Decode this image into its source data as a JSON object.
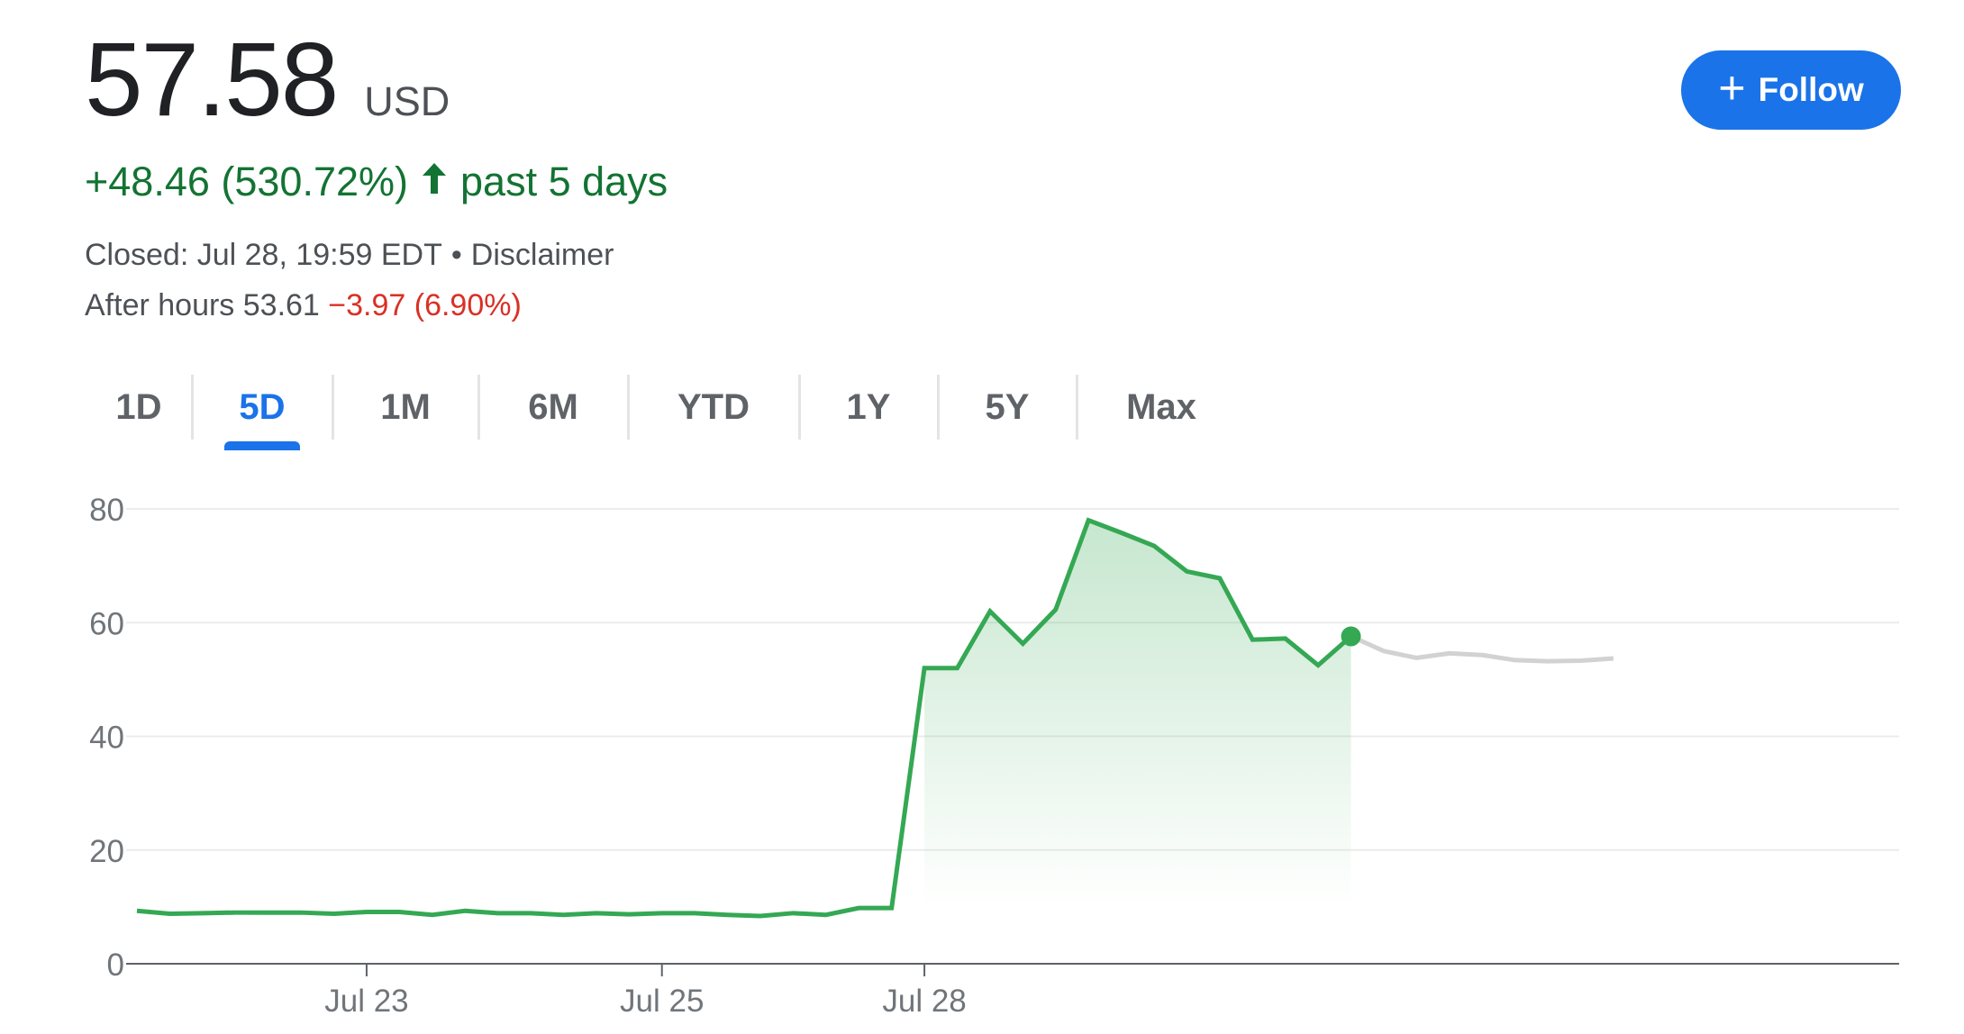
{
  "quote": {
    "price": "57.58",
    "currency": "USD",
    "change": "+48.46 (530.72%)",
    "change_arrow_icon": "arrow-up-icon",
    "change_period": "past 5 days",
    "closed_text": "Closed: Jul 28, 19:59 EDT",
    "separator": "•",
    "disclaimer": "Disclaimer",
    "after_hours_label": "After hours 53.61",
    "after_hours_change": "−3.97 (6.90%)"
  },
  "follow_button": {
    "label": "Follow",
    "icon": "plus-icon"
  },
  "tabs": [
    {
      "label": "1D",
      "active": false
    },
    {
      "label": "5D",
      "active": true
    },
    {
      "label": "1M",
      "active": false
    },
    {
      "label": "6M",
      "active": false
    },
    {
      "label": "YTD",
      "active": false
    },
    {
      "label": "1Y",
      "active": false
    },
    {
      "label": "5Y",
      "active": false
    },
    {
      "label": "Max",
      "active": false
    }
  ],
  "colors": {
    "positive": "#137333",
    "negative": "#d93025",
    "accent": "#1a73e8",
    "line": "#34a853",
    "after_hours_line": "#d2d2d2",
    "grid": "#ececec"
  },
  "chart_data": {
    "type": "line",
    "title": "",
    "xlabel": "",
    "ylabel": "",
    "ylim": [
      0,
      80
    ],
    "yticks": [
      0,
      20,
      40,
      60,
      80
    ],
    "grid": true,
    "x_tick_labels": [
      {
        "label": "Jul 23",
        "index": 7
      },
      {
        "label": "Jul 25",
        "index": 16
      },
      {
        "label": "Jul 28",
        "index": 24
      }
    ],
    "series": [
      {
        "role": "regular_hours",
        "values": [
          9.3,
          8.8,
          8.9,
          9.0,
          9.0,
          9.0,
          8.8,
          9.1,
          9.1,
          8.6,
          9.3,
          8.9,
          8.9,
          8.6,
          8.9,
          8.7,
          8.9,
          8.9,
          8.6,
          8.4,
          8.9,
          8.6,
          9.8,
          9.8,
          52.0,
          52.0,
          62.0,
          56.3,
          62.3,
          78.0,
          75.8,
          73.5,
          69.0,
          67.8,
          57.0,
          57.2,
          52.5,
          57.58
        ]
      },
      {
        "role": "after_hours",
        "start_index": 37,
        "values": [
          57.58,
          55.0,
          53.8,
          54.6,
          54.3,
          53.4,
          53.2,
          53.3,
          53.7
        ]
      }
    ],
    "current_point": {
      "index": 37,
      "value": 57.58
    },
    "x_count": 46
  }
}
